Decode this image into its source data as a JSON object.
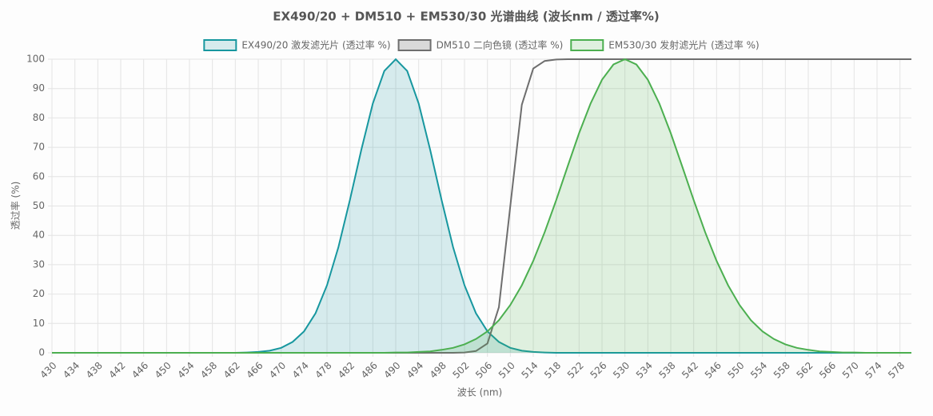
{
  "chart_data": {
    "type": "line",
    "title": "EX490/20 + DM510 + EM530/30 光谱曲线 (波长nm / 透过率%)",
    "x_label": "波长 (nm)",
    "y_label": "透过率 (%)",
    "x": [
      430,
      432,
      434,
      436,
      438,
      440,
      442,
      444,
      446,
      448,
      450,
      452,
      454,
      456,
      458,
      460,
      462,
      464,
      466,
      468,
      470,
      472,
      474,
      476,
      478,
      480,
      482,
      484,
      486,
      488,
      490,
      492,
      494,
      496,
      498,
      500,
      502,
      504,
      506,
      508,
      510,
      512,
      514,
      516,
      518,
      520,
      522,
      524,
      526,
      528,
      530,
      532,
      534,
      536,
      538,
      540,
      542,
      544,
      546,
      548,
      550,
      552,
      554,
      556,
      558,
      560,
      562,
      564,
      566,
      568,
      570,
      572,
      574,
      576,
      578,
      580
    ],
    "series": [
      {
        "name": "EX490/20 激发滤光片 (透过率 %)",
        "color": "#17979f",
        "fill": true,
        "values": [
          0,
          0,
          0,
          0,
          0,
          0,
          0,
          0,
          0,
          0,
          0,
          0,
          0,
          0,
          0,
          0,
          0,
          0.1,
          0.3,
          0.7,
          1.7,
          3.7,
          7.3,
          13.5,
          23,
          36,
          52.1,
          69.2,
          84.9,
          96,
          100,
          96,
          84.9,
          69.2,
          52.1,
          36,
          23,
          13.5,
          7.3,
          3.7,
          1.7,
          0.7,
          0.3,
          0.1,
          0,
          0,
          0,
          0,
          0,
          0,
          0,
          0,
          0,
          0,
          0,
          0,
          0,
          0,
          0,
          0,
          0,
          0,
          0,
          0,
          0,
          0,
          0,
          0,
          0,
          0,
          0,
          0,
          0,
          0,
          0,
          0
        ]
      },
      {
        "name": "DM510 二向色镜 (透过率 %)",
        "color": "#6e6e6e",
        "fill": false,
        "values": [
          0,
          0,
          0,
          0,
          0,
          0,
          0,
          0,
          0,
          0,
          0,
          0,
          0,
          0,
          0,
          0,
          0,
          0,
          0,
          0,
          0,
          0,
          0,
          0,
          0,
          0,
          0,
          0,
          0,
          0,
          0,
          0,
          0,
          0,
          0,
          0,
          0.1,
          0.6,
          3.2,
          15.5,
          50,
          84.5,
          96.8,
          99.4,
          99.9,
          100,
          100,
          100,
          100,
          100,
          100,
          100,
          100,
          100,
          100,
          100,
          100,
          100,
          100,
          100,
          100,
          100,
          100,
          100,
          100,
          100,
          100,
          100,
          100,
          100,
          100,
          100,
          100,
          100,
          100,
          100
        ]
      },
      {
        "name": "EM530/30 发射滤光片 (透过率 %)",
        "color": "#4caf50",
        "fill": true,
        "values": [
          0,
          0,
          0,
          0,
          0,
          0,
          0,
          0,
          0,
          0,
          0,
          0,
          0,
          0,
          0,
          0,
          0,
          0,
          0,
          0,
          0,
          0,
          0,
          0,
          0,
          0,
          0,
          0,
          0,
          0,
          0.1,
          0.1,
          0.3,
          0.5,
          1,
          1.7,
          2.9,
          4.7,
          7.3,
          11.1,
          16.3,
          23,
          31.3,
          41.1,
          52,
          63.5,
          74.8,
          84.9,
          93,
          98.2,
          100,
          98.2,
          93,
          84.9,
          74.8,
          63.5,
          52,
          41.1,
          31.3,
          23,
          16.3,
          11.1,
          7.3,
          4.7,
          2.9,
          1.7,
          1,
          0.5,
          0.3,
          0.1,
          0.1,
          0,
          0,
          0,
          0,
          0
        ]
      }
    ],
    "xlim": [
      430,
      580
    ],
    "xticks": [
      430,
      434,
      438,
      442,
      446,
      450,
      454,
      458,
      462,
      466,
      470,
      474,
      478,
      482,
      486,
      490,
      494,
      498,
      502,
      506,
      510,
      514,
      518,
      522,
      526,
      530,
      534,
      538,
      542,
      546,
      550,
      554,
      558,
      562,
      566,
      570,
      574,
      578
    ],
    "ylim": [
      0,
      100
    ],
    "yticks": [
      0,
      10,
      20,
      30,
      40,
      50,
      60,
      70,
      80,
      90,
      100
    ],
    "grid": true,
    "legend": "top"
  }
}
